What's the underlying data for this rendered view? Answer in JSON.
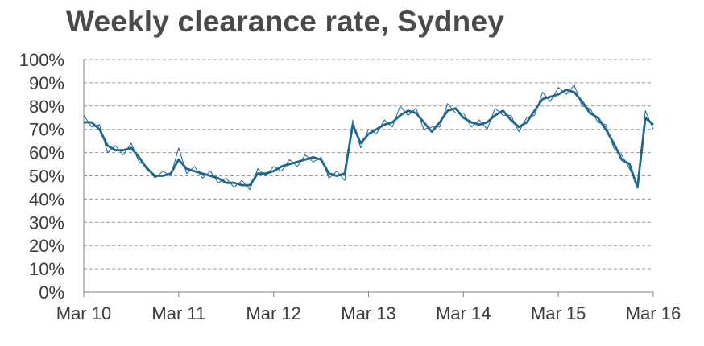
{
  "chart_data": {
    "type": "line",
    "title": "Weekly clearance rate, Sydney",
    "xlabel": "",
    "ylabel": "",
    "ylim": [
      0,
      100
    ],
    "y_tick_labels": [
      "0%",
      "10%",
      "20%",
      "30%",
      "40%",
      "50%",
      "60%",
      "70%",
      "80%",
      "90%",
      "100%"
    ],
    "x_tick_labels": [
      "Mar 10",
      "Mar 11",
      "Mar 12",
      "Mar 13",
      "Mar 14",
      "Mar 15",
      "Mar 16"
    ],
    "x_range": [
      "2010-03",
      "2016-03"
    ],
    "grid": "horizontal dashed",
    "colors": {
      "series": "#1f6691",
      "grid": "#9a9a9a",
      "axis": "#7f7f7f",
      "title": "#4a4a4a",
      "tick": "#3c3c3c"
    },
    "series": [
      {
        "style": "thick smoothed",
        "x": [
          "2010-03",
          "2010-04",
          "2010-05",
          "2010-06",
          "2010-07",
          "2010-08",
          "2010-09",
          "2010-10",
          "2010-11",
          "2010-12",
          "2011-01",
          "2011-02",
          "2011-03",
          "2011-04",
          "2011-05",
          "2011-06",
          "2011-07",
          "2011-08",
          "2011-09",
          "2011-10",
          "2011-11",
          "2011-12",
          "2012-01",
          "2012-02",
          "2012-03",
          "2012-04",
          "2012-05",
          "2012-06",
          "2012-07",
          "2012-08",
          "2012-09",
          "2012-10",
          "2012-11",
          "2012-12",
          "2013-01",
          "2013-02",
          "2013-03",
          "2013-04",
          "2013-05",
          "2013-06",
          "2013-07",
          "2013-08",
          "2013-09",
          "2013-10",
          "2013-11",
          "2013-12",
          "2014-01",
          "2014-02",
          "2014-03",
          "2014-04",
          "2014-05",
          "2014-06",
          "2014-07",
          "2014-08",
          "2014-09",
          "2014-10",
          "2014-11",
          "2014-12",
          "2015-01",
          "2015-02",
          "2015-03",
          "2015-04",
          "2015-05",
          "2015-06",
          "2015-07",
          "2015-08",
          "2015-09",
          "2015-10",
          "2015-11",
          "2015-12",
          "2016-01",
          "2016-02",
          "2016-03"
        ],
        "y": [
          73,
          73,
          70,
          63,
          61,
          61,
          62,
          58,
          53,
          50,
          50,
          51,
          57,
          53,
          52,
          51,
          50,
          49,
          47,
          47,
          46,
          46,
          51,
          51,
          52,
          54,
          55,
          56,
          57,
          58,
          57,
          51,
          50,
          51,
          72,
          64,
          68,
          70,
          72,
          73,
          76,
          78,
          77,
          73,
          69,
          73,
          78,
          79,
          75,
          73,
          72,
          73,
          76,
          78,
          74,
          71,
          73,
          78,
          83,
          84,
          85,
          87,
          86,
          82,
          77,
          75,
          70,
          64,
          57,
          55,
          45,
          75,
          72
        ]
      },
      {
        "style": "thin weekly",
        "x": [
          "2010-03",
          "2010-04",
          "2010-05",
          "2010-06",
          "2010-07",
          "2010-08",
          "2010-09",
          "2010-10",
          "2010-11",
          "2010-12",
          "2011-01",
          "2011-02",
          "2011-03",
          "2011-04",
          "2011-05",
          "2011-06",
          "2011-07",
          "2011-08",
          "2011-09",
          "2011-10",
          "2011-11",
          "2011-12",
          "2012-01",
          "2012-02",
          "2012-03",
          "2012-04",
          "2012-05",
          "2012-06",
          "2012-07",
          "2012-08",
          "2012-09",
          "2012-10",
          "2012-11",
          "2012-12",
          "2013-01",
          "2013-02",
          "2013-03",
          "2013-04",
          "2013-05",
          "2013-06",
          "2013-07",
          "2013-08",
          "2013-09",
          "2013-10",
          "2013-11",
          "2013-12",
          "2014-01",
          "2014-02",
          "2014-03",
          "2014-04",
          "2014-05",
          "2014-06",
          "2014-07",
          "2014-08",
          "2014-09",
          "2014-10",
          "2014-11",
          "2014-12",
          "2015-01",
          "2015-02",
          "2015-03",
          "2015-04",
          "2015-05",
          "2015-06",
          "2015-07",
          "2015-08",
          "2015-09",
          "2015-10",
          "2015-11",
          "2015-12",
          "2016-01",
          "2016-02",
          "2016-03"
        ],
        "y": [
          76,
          71,
          72,
          60,
          63,
          59,
          64,
          56,
          54,
          49,
          52,
          50,
          62,
          51,
          54,
          49,
          52,
          47,
          49,
          45,
          48,
          44,
          53,
          50,
          54,
          52,
          57,
          54,
          59,
          56,
          58,
          49,
          52,
          48,
          74,
          62,
          70,
          68,
          74,
          71,
          80,
          76,
          79,
          70,
          71,
          71,
          81,
          77,
          77,
          71,
          74,
          70,
          79,
          76,
          76,
          69,
          75,
          76,
          86,
          82,
          88,
          85,
          89,
          80,
          79,
          73,
          72,
          62,
          59,
          53,
          46,
          78,
          70
        ]
      }
    ]
  }
}
